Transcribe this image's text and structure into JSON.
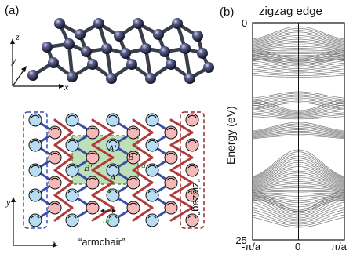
{
  "panel_a": {
    "label": "(a)",
    "axes3d": {
      "x": "x",
      "y": "y",
      "z": "z"
    },
    "lattice": {
      "sites": [
        "A",
        "B",
        "A'",
        "B'"
      ],
      "vec_a": "a",
      "vec_c": "c",
      "unit_cell": "uc",
      "axes": {
        "x": "x",
        "y": "y"
      },
      "edge_armchair": "“armchair”",
      "edge_zigzag": "“zigzag”"
    },
    "colors": {
      "red_atom": "#f7b8b8",
      "blue_atom": "#b8ddf3",
      "red_bond": "#b23a3a",
      "blue_bond": "#3a4fa8",
      "unit_cell_fill": "#a8d5a0",
      "armchair_box": "#3a4fa8",
      "zigzag_box": "#9a2a2a"
    }
  },
  "panel_b": {
    "label": "(b)",
    "title": "zigzag edge",
    "ylabel": "Energy (eV)",
    "y_top": "0",
    "y_bottom": "-25",
    "x_ticks": [
      "-π/a",
      "0",
      "π/a"
    ],
    "band_color": "#7a7a7a"
  }
}
